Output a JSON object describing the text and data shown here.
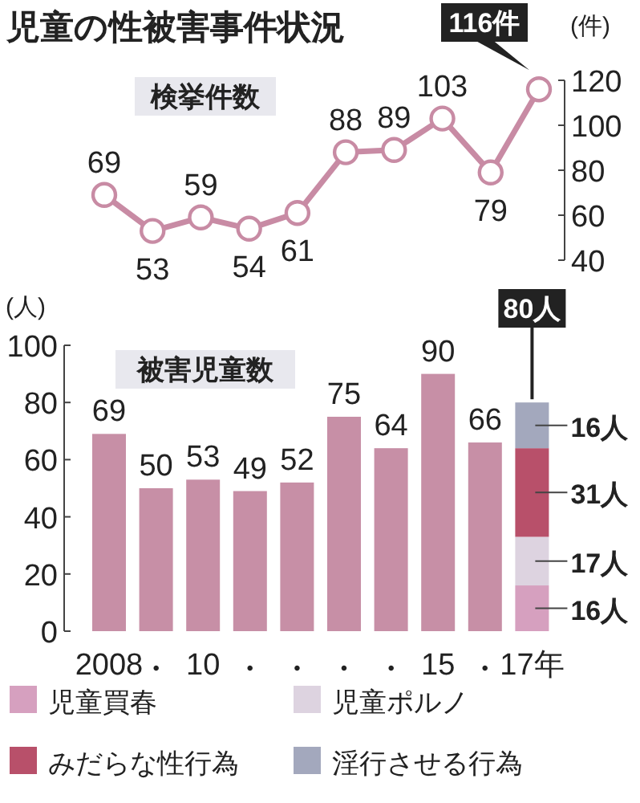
{
  "chart_data": [
    {
      "type": "line",
      "title": "児童の性被害事件状況",
      "subtitle": "検挙件数",
      "ylabel": "(件)",
      "series": [
        {
          "color": "#c88ba4",
          "values": [
            69,
            53,
            59,
            54,
            61,
            88,
            89,
            103,
            79,
            116
          ],
          "value_labels": [
            "69",
            "53",
            "59",
            "54",
            "61",
            "88",
            "89",
            "103",
            "79",
            "116件"
          ]
        }
      ],
      "ylim": [
        40,
        120
      ],
      "yticks": [
        40,
        60,
        80,
        100,
        120
      ],
      "marker": "circle",
      "tick_labels": "y",
      "grid": false
    },
    {
      "type": "bar",
      "subtitle": "被害児童数",
      "ylabel": "(人)",
      "categories": [
        "2008",
        "•",
        "10",
        "•",
        "•",
        "•",
        "•",
        "15",
        "•",
        "17年"
      ],
      "stacked": true,
      "series": [
        {
          "color": "#c78fa6",
          "values": [
            69,
            50,
            53,
            49,
            52,
            75,
            64,
            90,
            66,
            null
          ],
          "value_labels": [
            "69",
            "50",
            "53",
            "49",
            "52",
            "75",
            "64",
            "90",
            "66",
            null
          ]
        },
        {
          "name": "児童買春",
          "color": "#d6a0bf",
          "values": [
            null,
            null,
            null,
            null,
            null,
            null,
            null,
            null,
            null,
            16
          ],
          "value_labels": [
            null,
            null,
            null,
            null,
            null,
            null,
            null,
            null,
            null,
            "16人"
          ]
        },
        {
          "name": "児童ポルノ",
          "color": "#ddd3e0",
          "values": [
            null,
            null,
            null,
            null,
            null,
            null,
            null,
            null,
            null,
            17
          ],
          "value_labels": [
            null,
            null,
            null,
            null,
            null,
            null,
            null,
            null,
            null,
            "17人"
          ]
        },
        {
          "name": "みだらな性行為",
          "color": "#b8506a",
          "values": [
            null,
            null,
            null,
            null,
            null,
            null,
            null,
            null,
            null,
            31
          ],
          "value_labels": [
            null,
            null,
            null,
            null,
            null,
            null,
            null,
            null,
            null,
            "31人"
          ]
        },
        {
          "name": "淫行させる行為",
          "color": "#a3a8bd",
          "values": [
            null,
            null,
            null,
            null,
            null,
            null,
            null,
            null,
            null,
            16
          ],
          "value_labels": [
            null,
            null,
            null,
            null,
            null,
            null,
            null,
            null,
            null,
            "16人"
          ]
        }
      ],
      "totals": [
        null,
        null,
        null,
        null,
        null,
        null,
        null,
        null,
        null,
        "80人"
      ],
      "ylim": [
        0,
        100
      ],
      "yticks": [
        0,
        20,
        40,
        60,
        80,
        100
      ],
      "grid": false,
      "legend": "bottom"
    }
  ]
}
